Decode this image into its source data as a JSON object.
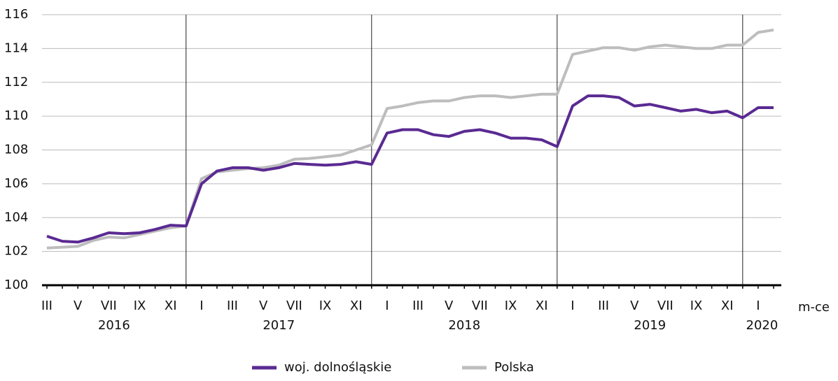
{
  "chart_data": {
    "type": "line",
    "x_axis_label": "m-ce",
    "categories": [
      "III",
      null,
      "V",
      null,
      "VII",
      null,
      "IX",
      null,
      "XI",
      null,
      "I",
      null,
      "III",
      null,
      "V",
      null,
      "VII",
      null,
      "IX",
      null,
      "XI",
      null,
      "I",
      null,
      "III",
      null,
      "V",
      null,
      "VII",
      null,
      "IX",
      null,
      "XI",
      null,
      "I",
      null,
      "III",
      null,
      "V",
      null,
      "VII",
      null,
      "IX",
      null,
      "XI",
      null,
      "I",
      null
    ],
    "years": [
      "2016",
      "2017",
      "2018",
      "2019",
      "2020"
    ],
    "series": [
      {
        "name": "woj. dolnośląskie",
        "color": "#5a2a92",
        "values": [
          102.9,
          102.6,
          102.55,
          102.8,
          103.1,
          103.05,
          103.1,
          103.3,
          103.55,
          103.5,
          106.0,
          106.75,
          106.95,
          106.95,
          106.8,
          106.95,
          107.2,
          107.15,
          107.1,
          107.15,
          107.3,
          107.15,
          109.0,
          109.2,
          109.2,
          108.9,
          108.8,
          109.1,
          109.2,
          109.0,
          108.7,
          108.7,
          108.6,
          108.2,
          110.6,
          111.2,
          111.2,
          111.1,
          110.6,
          110.7,
          110.5,
          110.3,
          110.4,
          110.2,
          110.3,
          109.9,
          110.5,
          110.5
        ]
      },
      {
        "name": "Polska",
        "color": "#bdbdbd",
        "values": [
          102.2,
          102.25,
          102.3,
          102.65,
          102.85,
          102.8,
          103.0,
          103.2,
          103.4,
          103.5,
          106.3,
          106.7,
          106.8,
          106.9,
          106.95,
          107.1,
          107.45,
          107.5,
          107.6,
          107.7,
          108.0,
          108.3,
          110.45,
          110.6,
          110.8,
          110.9,
          110.9,
          111.1,
          111.2,
          111.2,
          111.1,
          111.2,
          111.3,
          111.3,
          113.65,
          113.85,
          114.05,
          114.05,
          113.9,
          114.1,
          114.2,
          114.1,
          114.0,
          114.0,
          114.2,
          114.2,
          114.95,
          115.1
        ]
      }
    ],
    "ylim": [
      100,
      116
    ],
    "yticks": [
      100,
      102,
      104,
      106,
      108,
      110,
      112,
      114,
      116
    ],
    "grid": true,
    "legend": "bottom"
  }
}
